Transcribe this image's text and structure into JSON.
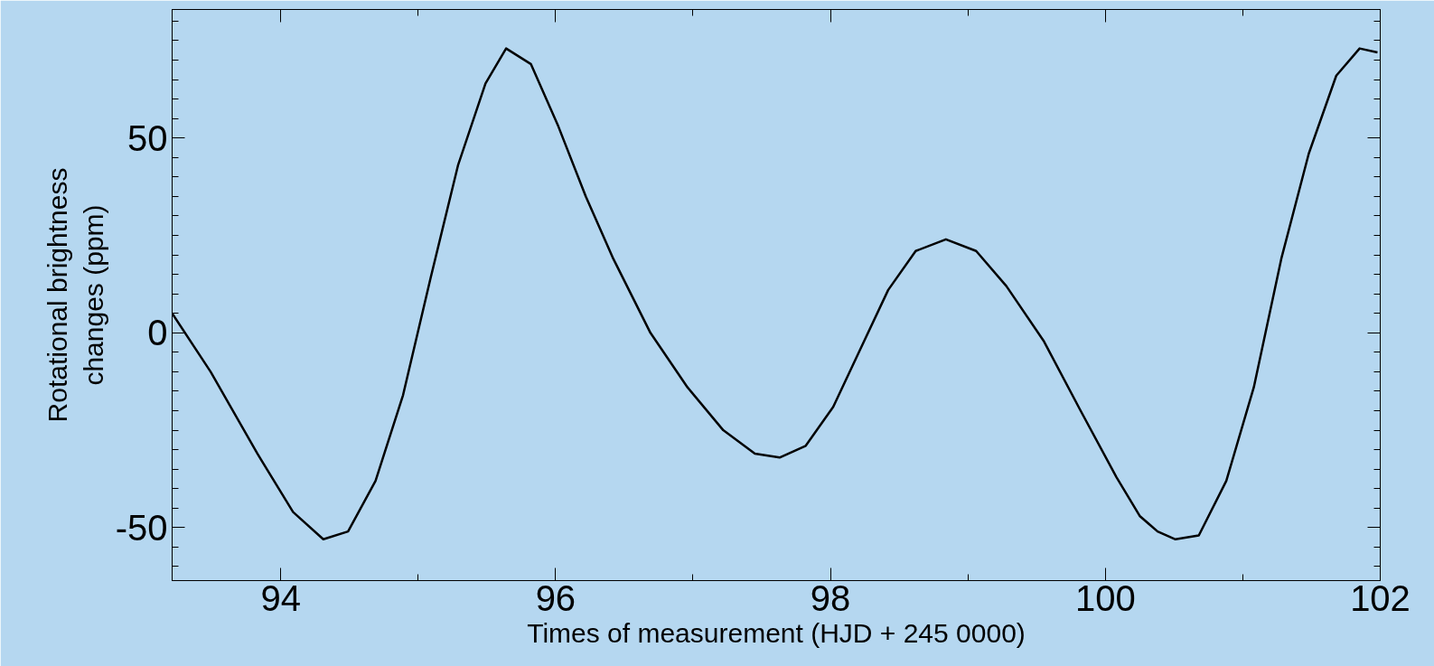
{
  "chart_data": {
    "type": "line",
    "xlabel": "Times of measurement (HJD + 245 0000)",
    "ylabel": "Rotational brightness\nchanges (ppm)",
    "xlim": [
      93.21,
      102
    ],
    "ylim": [
      -63.6,
      83
    ],
    "xticks": [
      94,
      96,
      98,
      100,
      102
    ],
    "yticks": [
      -50,
      0,
      50
    ],
    "grid": false,
    "line_style": "solid",
    "series": [
      {
        "color": "#000000",
        "x": [
          93.21,
          93.49,
          93.83,
          94.09,
          94.31,
          94.49,
          94.69,
          94.89,
          95.09,
          95.29,
          95.49,
          95.64,
          95.82,
          96.02,
          96.22,
          96.42,
          96.69,
          96.96,
          97.22,
          97.45,
          97.63,
          97.82,
          98.02,
          98.22,
          98.42,
          98.62,
          98.84,
          99.06,
          99.28,
          99.55,
          99.82,
          100.08,
          100.25,
          100.38,
          100.51,
          100.68,
          100.88,
          101.08,
          101.28,
          101.48,
          101.68,
          101.85,
          101.98
        ],
        "values": [
          5,
          -10,
          -31,
          -46,
          -53,
          -51,
          -38,
          -16,
          14,
          43,
          64,
          73,
          69,
          53,
          35,
          19,
          0,
          -14,
          -25,
          -31,
          -32,
          -29,
          -19,
          -4,
          11,
          21,
          24,
          21,
          12,
          -2,
          -20,
          -37,
          -47,
          -51,
          -53,
          -52,
          -38,
          -14,
          19,
          46,
          66,
          73,
          72
        ]
      }
    ]
  }
}
